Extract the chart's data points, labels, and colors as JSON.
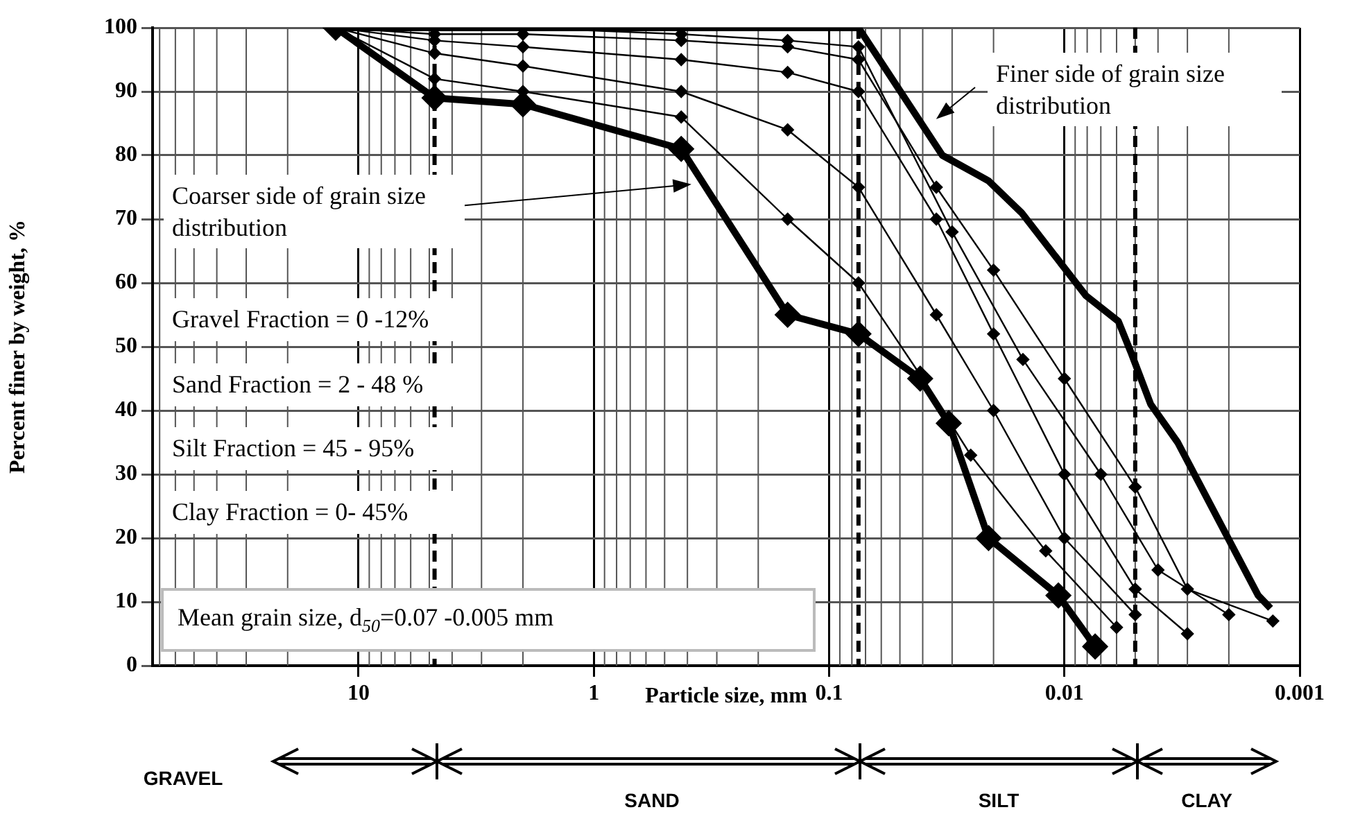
{
  "chart_data": {
    "type": "line",
    "xlabel": "Particle size, mm",
    "ylabel": "Percent finer by weight, %",
    "log": "x",
    "xlim": [
      75,
      0.001
    ],
    "xticks": [
      10,
      1,
      0.1,
      0.01,
      0.001
    ],
    "ylim": [
      0,
      100
    ],
    "yticks": [
      0,
      10,
      20,
      30,
      40,
      50,
      60,
      70,
      80,
      90,
      100
    ],
    "grid": true,
    "legend": false,
    "line_style": "solid",
    "marker": "diamond",
    "series": [
      {
        "color": "#000000",
        "x": [
          12.5,
          4.75,
          2,
          0.425,
          0.15,
          0.075,
          0.041,
          0.031,
          0.021,
          0.0106,
          0.0074
        ],
        "values": [
          100,
          89,
          88,
          81,
          55,
          52,
          45,
          38,
          20,
          11,
          3
        ]
      },
      {
        "color": "#000000",
        "x": [
          12.5,
          4.75,
          2,
          0.425,
          0.15,
          0.075,
          0.035,
          0.02,
          0.01,
          0.005,
          0.003
        ],
        "values": [
          100,
          98,
          97,
          95,
          93,
          90,
          70,
          52,
          30,
          12,
          5
        ]
      },
      {
        "color": "#000000",
        "x": [
          12.5,
          4.75,
          2,
          0.425,
          0.15,
          0.075,
          0.035,
          0.02,
          0.01,
          0.005
        ],
        "values": [
          100,
          96,
          94,
          90,
          84,
          75,
          55,
          40,
          20,
          8
        ]
      },
      {
        "color": "#000000",
        "x": [
          12.5,
          4.75,
          2,
          0.425,
          0.15,
          0.075,
          0.035,
          0.02,
          0.01,
          0.005,
          0.003,
          0.0013
        ],
        "values": [
          100,
          99,
          99,
          98,
          97,
          95,
          75,
          62,
          45,
          28,
          12,
          7
        ]
      },
      {
        "color": "#000000",
        "x": [
          12.5,
          4.75,
          2,
          0.425,
          0.15,
          0.075,
          0.04,
          0.025,
          0.012,
          0.006
        ],
        "values": [
          100,
          92,
          90,
          86,
          70,
          60,
          45,
          33,
          18,
          6
        ]
      },
      {
        "color": "#000000",
        "x": [
          12.5,
          4.75,
          2,
          0.425,
          0.15,
          0.075,
          0.03,
          0.015,
          0.007,
          0.004,
          0.002
        ],
        "values": [
          100,
          100,
          100,
          99,
          98,
          97,
          68,
          48,
          30,
          15,
          8
        ]
      },
      {
        "color": "#000000",
        "marker": "none",
        "x": [
          12.5,
          4.75,
          2,
          0.425,
          0.15,
          0.075,
          0.033,
          0.021,
          0.0152,
          0.0081,
          0.0059,
          0.0052,
          0.0043,
          0.0033,
          0.0015,
          0.00133
        ],
        "values": [
          100,
          100,
          100,
          100,
          100,
          100,
          80,
          76,
          71,
          58,
          54,
          49,
          41,
          35,
          11,
          9
        ]
      }
    ],
    "ref_lines": [
      {
        "axis": "x",
        "value": 4.75,
        "line_style": "dashed",
        "color": "#000000"
      },
      {
        "axis": "x",
        "value": 0.075,
        "line_style": "dashed",
        "color": "#000000"
      },
      {
        "axis": "x",
        "value": 0.005,
        "line_style": "dashed",
        "color": "#000000"
      }
    ],
    "annotations": [
      "Coarser side of grain size distribution",
      "Finer side of grain size distribution",
      "Gravel Fraction  =  0 -12%",
      "Sand Fraction =  2 - 48 %",
      "Silt Fraction =  45 - 95%",
      "Clay Fraction = 0- 45%",
      "Mean grain size, d$_{50}$=0.07 -0.005 mm",
      "GRAVEL",
      "SAND",
      "SILT",
      "CLAY"
    ]
  }
}
